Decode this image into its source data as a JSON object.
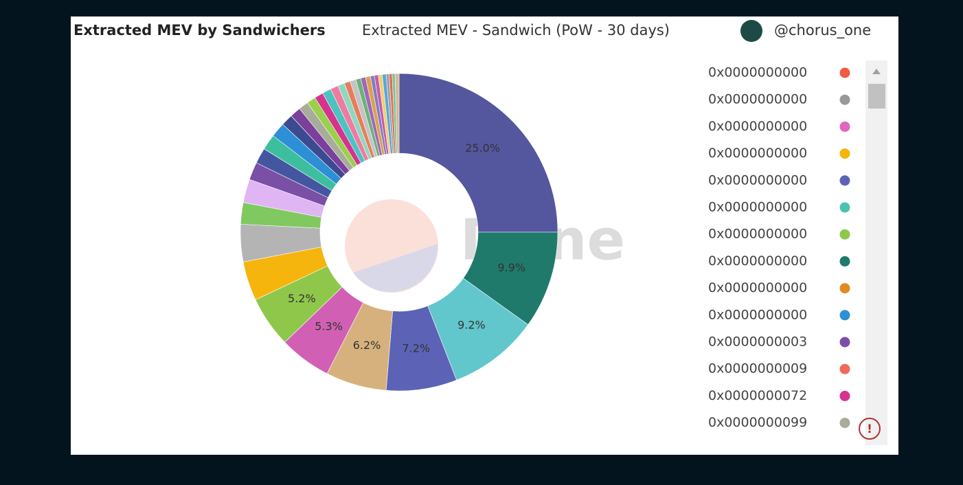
{
  "chart_data": {
    "type": "pie",
    "title": "Extracted MEV by Sandwichers",
    "subtitle": "Extracted MEV - Sandwich (PoW - 30 days)",
    "author": "@chorus_one",
    "watermark": "Dune",
    "categories": [
      null,
      null,
      null,
      null,
      null,
      null,
      null,
      null,
      null,
      null,
      null,
      null,
      null,
      null,
      null,
      null,
      null,
      null,
      null,
      null,
      null,
      null,
      null,
      null,
      null,
      null,
      null,
      null,
      null,
      null,
      null,
      null,
      null,
      null,
      null,
      null
    ],
    "values": [
      25.0,
      9.9,
      9.2,
      7.2,
      6.2,
      5.3,
      5.2,
      4.0,
      3.8,
      2.2,
      2.4,
      1.8,
      1.6,
      1.6,
      1.5,
      1.2,
      1.1,
      1.0,
      0.9,
      0.9,
      0.9,
      0.8,
      0.7,
      0.6,
      0.6,
      0.5,
      0.5,
      0.5,
      0.4,
      0.4,
      0.4,
      0.4,
      0.3,
      0.3,
      0.3,
      0.4
    ],
    "value_labels": [
      "25.0%",
      "9.9%",
      "9.2%",
      "7.2%",
      "6.2%",
      "5.3%",
      "5.2%",
      null,
      null,
      null,
      null,
      null,
      null,
      null,
      null,
      null,
      null,
      null,
      null,
      null,
      null,
      null,
      null,
      null,
      null,
      null,
      null,
      null,
      null,
      null,
      null,
      null,
      null,
      null,
      null,
      null
    ],
    "colors": [
      "#54569e",
      "#1f7a6c",
      "#62c7cc",
      "#5c63b6",
      "#d6b17e",
      "#d160b4",
      "#8fc74b",
      "#f5b50c",
      "#b4b4b4",
      "#80c860",
      "#e0b5f4",
      "#7a4fa6",
      "#4556a0",
      "#3dbf9f",
      "#2d8fd6",
      "#3c4a90",
      "#7b3f9c",
      "#a8ad9a",
      "#9ad04c",
      "#d6338f",
      "#4cc3c0",
      "#f07ba0",
      "#8fd8c0",
      "#e87c5a",
      "#c3c3c3",
      "#6fb07a",
      "#9b6ab8",
      "#e0a050",
      "#7c7fc4",
      "#c85ca8",
      "#f0d070",
      "#58a8d8",
      "#a0a0a0",
      "#e86a50",
      "#70c8a0",
      "#d8b890"
    ],
    "legend": [
      {
        "label": "0x0000000000",
        "color": "#ef5b45"
      },
      {
        "label": "0x0000000000",
        "color": "#999999"
      },
      {
        "label": "0x0000000000",
        "color": "#e066c0"
      },
      {
        "label": "0x0000000000",
        "color": "#f5b50c"
      },
      {
        "label": "0x0000000000",
        "color": "#5c63b6"
      },
      {
        "label": "0x0000000000",
        "color": "#4cc3b0"
      },
      {
        "label": "0x0000000000",
        "color": "#8fc74b"
      },
      {
        "label": "0x0000000000",
        "color": "#1f7a6c"
      },
      {
        "label": "0x0000000000",
        "color": "#e08a20"
      },
      {
        "label": "0x0000000000",
        "color": "#2d8fd6"
      },
      {
        "label": "0x0000000003",
        "color": "#7a4fa6"
      },
      {
        "label": "0x0000000009",
        "color": "#f06a5a"
      },
      {
        "label": "0x0000000072",
        "color": "#d6338f"
      },
      {
        "label": "0x0000000099",
        "color": "#a8ad9a"
      }
    ]
  }
}
